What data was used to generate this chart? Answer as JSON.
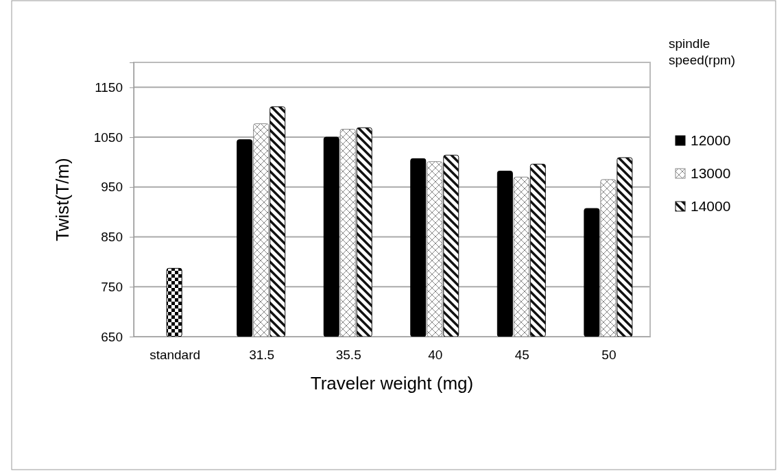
{
  "chart_data": {
    "type": "bar",
    "xlabel": "Traveler weight (mg)",
    "ylabel": "Twist(T/m)",
    "legend_title": "spindle speed(rpm)",
    "categories": [
      "standard",
      "31.5",
      "35.5",
      "40",
      "45",
      "50"
    ],
    "series": [
      {
        "color": "#000000",
        "values": [
          787,
          null,
          null,
          null,
          null,
          null
        ]
      },
      {
        "name": "12000",
        "color": "#000000",
        "values": [
          null,
          1045,
          1050,
          1007,
          982,
          907
        ]
      },
      {
        "name": "13000",
        "color": "#888888",
        "values": [
          null,
          1077,
          1066,
          1001,
          970,
          965
        ]
      },
      {
        "name": "14000",
        "color": "#111111",
        "values": [
          null,
          1111,
          1069,
          1014,
          996,
          1009
        ]
      }
    ],
    "ylim": [
      650,
      1200
    ],
    "yticks": [
      650,
      750,
      850,
      950,
      1050,
      1150
    ],
    "grid": "y",
    "legend": "right"
  }
}
